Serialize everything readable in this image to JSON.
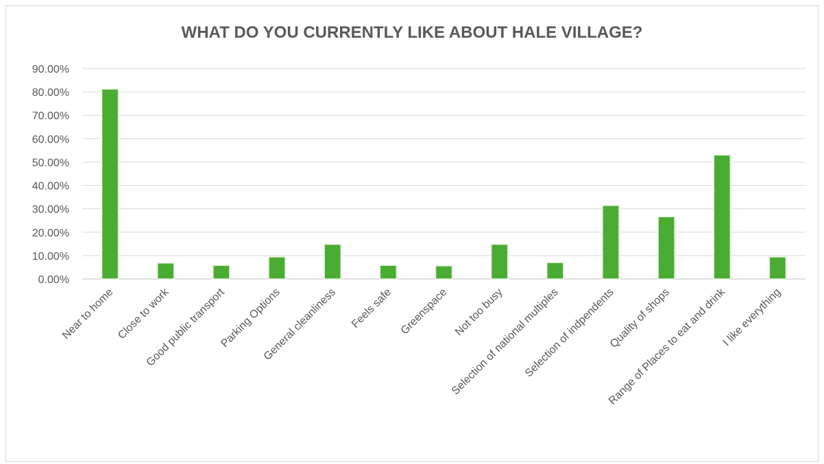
{
  "chart_data": {
    "type": "bar",
    "title": "WHAT DO YOU CURRENTLY LIKE ABOUT HALE VILLAGE?",
    "xlabel": "",
    "ylabel": "",
    "categories": [
      "Near to home",
      "Close to work",
      "Good public transport",
      "Parking Options",
      "General cleanliness",
      "Feels safe",
      "Greenspace",
      "Not too busy",
      "Selection of national multiples",
      "Selection of indpendents",
      "Quality of shops",
      "Range of Places to eat and drink",
      "I like everything"
    ],
    "values": [
      81.2,
      6.8,
      5.8,
      9.4,
      14.8,
      5.8,
      5.6,
      14.8,
      7.0,
      31.4,
      26.6,
      53.0,
      9.4
    ],
    "ylim": [
      0,
      90
    ],
    "yticks": [
      "0.00%",
      "10.00%",
      "20.00%",
      "30.00%",
      "40.00%",
      "50.00%",
      "60.00%",
      "70.00%",
      "80.00%",
      "90.00%"
    ],
    "grid": true,
    "legend": "none",
    "bar_color": "#4aac33",
    "bar_edge_color": "#e2f0d9"
  }
}
